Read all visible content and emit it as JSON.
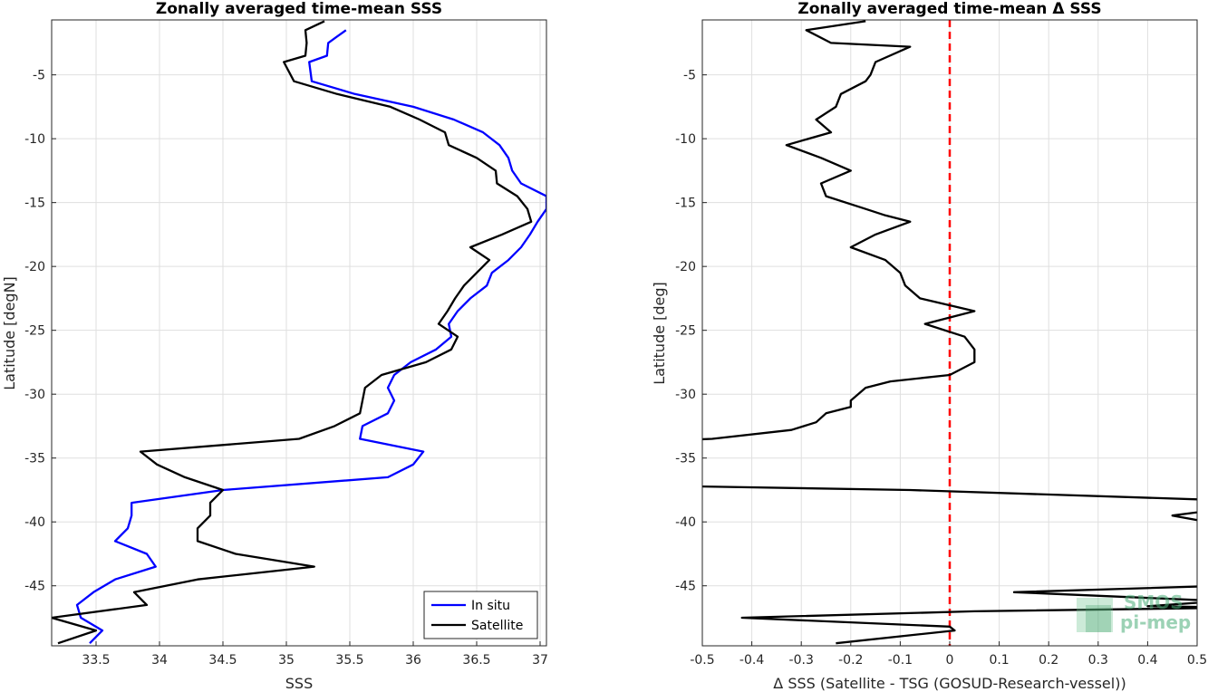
{
  "chart_data": [
    {
      "type": "line",
      "title": "Zonally averaged time-mean SSS",
      "xlabel": "SSS",
      "ylabel": "Latitude [degN]",
      "xlim": [
        33.15,
        37.05
      ],
      "ylim": [
        -49.7,
        -0.7
      ],
      "xticks": [
        33.5,
        34,
        34.5,
        35,
        35.5,
        36,
        36.5,
        37
      ],
      "yticks": [
        -5,
        -10,
        -15,
        -20,
        -25,
        -30,
        -35,
        -40,
        -45
      ],
      "grid": true,
      "legend_position": "bottom-right",
      "series": [
        {
          "name": "In situ",
          "color": "#0000ff",
          "points": [
            [
              35.47,
              -1.5
            ],
            [
              35.4,
              -2.0
            ],
            [
              35.33,
              -2.5
            ],
            [
              35.32,
              -3.5
            ],
            [
              35.18,
              -4.0
            ],
            [
              35.2,
              -5.5
            ],
            [
              35.54,
              -6.5
            ],
            [
              36.0,
              -7.5
            ],
            [
              36.32,
              -8.5
            ],
            [
              36.55,
              -9.5
            ],
            [
              36.68,
              -10.5
            ],
            [
              36.75,
              -11.5
            ],
            [
              36.78,
              -12.5
            ],
            [
              36.85,
              -13.5
            ],
            [
              37.05,
              -14.5
            ],
            [
              37.05,
              -15.5
            ],
            [
              36.98,
              -16.5
            ],
            [
              36.92,
              -17.5
            ],
            [
              36.85,
              -18.5
            ],
            [
              36.75,
              -19.5
            ],
            [
              36.62,
              -20.5
            ],
            [
              36.58,
              -21.5
            ],
            [
              36.45,
              -22.5
            ],
            [
              36.35,
              -23.5
            ],
            [
              36.28,
              -24.5
            ],
            [
              36.3,
              -25.5
            ],
            [
              36.18,
              -26.5
            ],
            [
              35.98,
              -27.5
            ],
            [
              35.85,
              -28.5
            ],
            [
              35.8,
              -29.5
            ],
            [
              35.85,
              -30.5
            ],
            [
              35.8,
              -31.5
            ],
            [
              35.6,
              -32.5
            ],
            [
              35.58,
              -33.5
            ],
            [
              36.08,
              -34.5
            ],
            [
              36.0,
              -35.5
            ],
            [
              35.8,
              -36.5
            ],
            [
              34.5,
              -37.5
            ],
            [
              33.78,
              -38.5
            ],
            [
              33.78,
              -39.5
            ],
            [
              33.75,
              -40.5
            ],
            [
              33.65,
              -41.5
            ],
            [
              33.9,
              -42.5
            ],
            [
              33.97,
              -43.5
            ],
            [
              33.65,
              -44.5
            ],
            [
              33.48,
              -45.5
            ],
            [
              33.35,
              -46.5
            ],
            [
              33.38,
              -47.5
            ],
            [
              33.55,
              -48.5
            ],
            [
              33.45,
              -49.5
            ]
          ]
        },
        {
          "name": "Satellite",
          "color": "#000000",
          "points": [
            [
              35.3,
              -0.8
            ],
            [
              35.15,
              -1.5
            ],
            [
              35.16,
              -2.5
            ],
            [
              35.15,
              -3.5
            ],
            [
              34.98,
              -4.0
            ],
            [
              35.06,
              -5.5
            ],
            [
              35.4,
              -6.5
            ],
            [
              35.82,
              -7.5
            ],
            [
              36.05,
              -8.5
            ],
            [
              36.25,
              -9.5
            ],
            [
              36.28,
              -10.5
            ],
            [
              36.5,
              -11.5
            ],
            [
              36.65,
              -12.5
            ],
            [
              36.66,
              -13.5
            ],
            [
              36.82,
              -14.5
            ],
            [
              36.9,
              -15.5
            ],
            [
              36.93,
              -16.5
            ],
            [
              36.7,
              -17.5
            ],
            [
              36.45,
              -18.5
            ],
            [
              36.6,
              -19.5
            ],
            [
              36.5,
              -20.5
            ],
            [
              36.4,
              -21.5
            ],
            [
              36.33,
              -22.5
            ],
            [
              36.27,
              -23.5
            ],
            [
              36.2,
              -24.5
            ],
            [
              36.35,
              -25.5
            ],
            [
              36.3,
              -26.5
            ],
            [
              36.1,
              -27.5
            ],
            [
              35.75,
              -28.5
            ],
            [
              35.62,
              -29.5
            ],
            [
              35.6,
              -30.5
            ],
            [
              35.58,
              -31.5
            ],
            [
              35.38,
              -32.5
            ],
            [
              35.1,
              -33.5
            ],
            [
              33.85,
              -34.5
            ],
            [
              33.98,
              -35.5
            ],
            [
              34.2,
              -36.5
            ],
            [
              34.5,
              -37.5
            ],
            [
              34.4,
              -38.5
            ],
            [
              34.4,
              -39.5
            ],
            [
              34.3,
              -40.5
            ],
            [
              34.3,
              -41.5
            ],
            [
              34.6,
              -42.5
            ],
            [
              35.22,
              -43.5
            ],
            [
              34.3,
              -44.5
            ],
            [
              33.8,
              -45.5
            ],
            [
              33.9,
              -46.5
            ],
            [
              33.15,
              -47.5
            ],
            [
              33.5,
              -48.5
            ],
            [
              33.2,
              -49.5
            ]
          ]
        }
      ]
    },
    {
      "type": "line",
      "title": "Zonally averaged time-mean Δ SSS",
      "xlabel": "Δ SSS (Satellite - TSG (GOSUD-Research-vessel))",
      "ylabel": "Latitude [deg]",
      "xlim": [
        -0.5,
        0.5
      ],
      "ylim": [
        -49.7,
        -0.7
      ],
      "xticks": [
        -0.5,
        -0.4,
        -0.3,
        -0.2,
        -0.1,
        0,
        0.1,
        0.2,
        0.3,
        0.4,
        0.5
      ],
      "xticklabels": [
        "-0.5",
        "-0.4",
        "-0.3",
        "-0.2",
        "-0.1",
        "0",
        "0.1",
        "0.2",
        "0.3",
        "0.4",
        "0.5"
      ],
      "yticks": [
        -5,
        -10,
        -15,
        -20,
        -25,
        -30,
        -35,
        -40,
        -45
      ],
      "grid": true,
      "reference_line": {
        "x": 0,
        "color": "#ff0000",
        "style": "dashed"
      },
      "series": [
        {
          "color": "#000000",
          "points": [
            [
              -0.17,
              -0.8
            ],
            [
              -0.29,
              -1.5
            ],
            [
              -0.24,
              -2.5
            ],
            [
              -0.08,
              -2.8
            ],
            [
              -0.15,
              -4.0
            ],
            [
              -0.16,
              -5.0
            ],
            [
              -0.17,
              -5.5
            ],
            [
              -0.22,
              -6.5
            ],
            [
              -0.23,
              -7.5
            ],
            [
              -0.27,
              -8.5
            ],
            [
              -0.24,
              -9.5
            ],
            [
              -0.33,
              -10.5
            ],
            [
              -0.26,
              -11.5
            ],
            [
              -0.2,
              -12.5
            ],
            [
              -0.26,
              -13.5
            ],
            [
              -0.25,
              -14.5
            ],
            [
              -0.17,
              -15.5
            ],
            [
              -0.13,
              -16.0
            ],
            [
              -0.08,
              -16.5
            ],
            [
              -0.15,
              -17.5
            ],
            [
              -0.2,
              -18.5
            ],
            [
              -0.13,
              -19.5
            ],
            [
              -0.1,
              -20.5
            ],
            [
              -0.09,
              -21.5
            ],
            [
              -0.06,
              -22.5
            ],
            [
              0.05,
              -23.5
            ],
            [
              -0.05,
              -24.5
            ],
            [
              0.03,
              -25.5
            ],
            [
              0.05,
              -26.5
            ],
            [
              0.05,
              -27.5
            ],
            [
              0.0,
              -28.5
            ],
            [
              -0.12,
              -29.0
            ],
            [
              -0.17,
              -29.5
            ],
            [
              -0.2,
              -30.5
            ],
            [
              -0.2,
              -31.0
            ],
            [
              -0.25,
              -31.5
            ],
            [
              -0.27,
              -32.2
            ],
            [
              -0.32,
              -32.8
            ],
            [
              -0.48,
              -33.5
            ],
            [
              -0.55,
              -33.6
            ]
          ]
        },
        {
          "color": "#000000",
          "points": [
            [
              -0.55,
              -37.2
            ],
            [
              -0.08,
              -37.5
            ],
            [
              0.55,
              -38.3
            ]
          ]
        },
        {
          "color": "#000000",
          "points": [
            [
              0.55,
              -39.0
            ],
            [
              0.45,
              -39.5
            ],
            [
              0.52,
              -40.0
            ],
            [
              0.6,
              -40.5
            ]
          ]
        },
        {
          "color": "#000000",
          "points": [
            [
              0.55,
              -45.0
            ],
            [
              0.13,
              -45.5
            ],
            [
              0.55,
              -46.2
            ],
            [
              0.4,
              -46.6
            ],
            [
              0.6,
              -46.7
            ],
            [
              0.05,
              -47.0
            ],
            [
              -0.42,
              -47.5
            ],
            [
              0.0,
              -48.2
            ],
            [
              0.01,
              -48.5
            ],
            [
              -0.23,
              -49.5
            ]
          ]
        }
      ]
    }
  ]
}
